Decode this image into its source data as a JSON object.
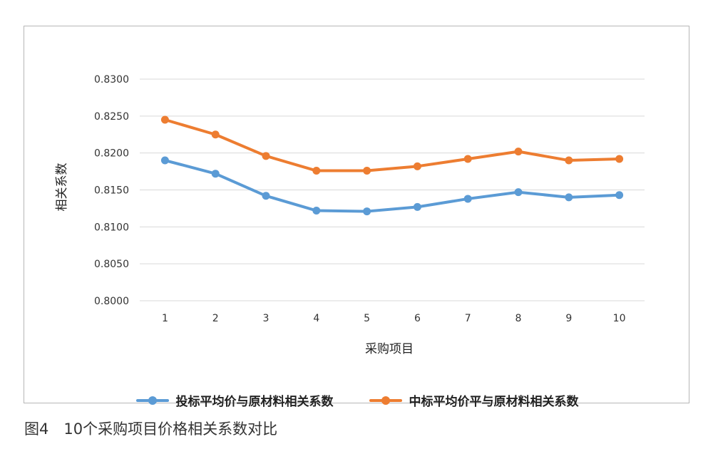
{
  "caption": "图4　10个采购项目价格相关系数对比",
  "chart_data": {
    "type": "line",
    "title": "",
    "xlabel": "采购项目",
    "ylabel": "相关系数",
    "categories": [
      "1",
      "2",
      "3",
      "4",
      "5",
      "6",
      "7",
      "8",
      "9",
      "10"
    ],
    "ylim": [
      0.8,
      0.83
    ],
    "yticks": [
      "0.8000",
      "0.8050",
      "0.8100",
      "0.8150",
      "0.8200",
      "0.8250",
      "0.8300"
    ],
    "grid": true,
    "legend_position": "bottom",
    "series": [
      {
        "name": "投标平均价与原材料相关系数",
        "color": "#5b9bd5",
        "values": [
          0.819,
          0.8172,
          0.8142,
          0.8122,
          0.8121,
          0.8127,
          0.8138,
          0.8147,
          0.814,
          0.8143
        ]
      },
      {
        "name": "中标平均价平与原材料相关系数",
        "color": "#ed7d31",
        "values": [
          0.8245,
          0.8225,
          0.8196,
          0.8176,
          0.8176,
          0.8182,
          0.8192,
          0.8202,
          0.819,
          0.8192
        ]
      }
    ]
  }
}
